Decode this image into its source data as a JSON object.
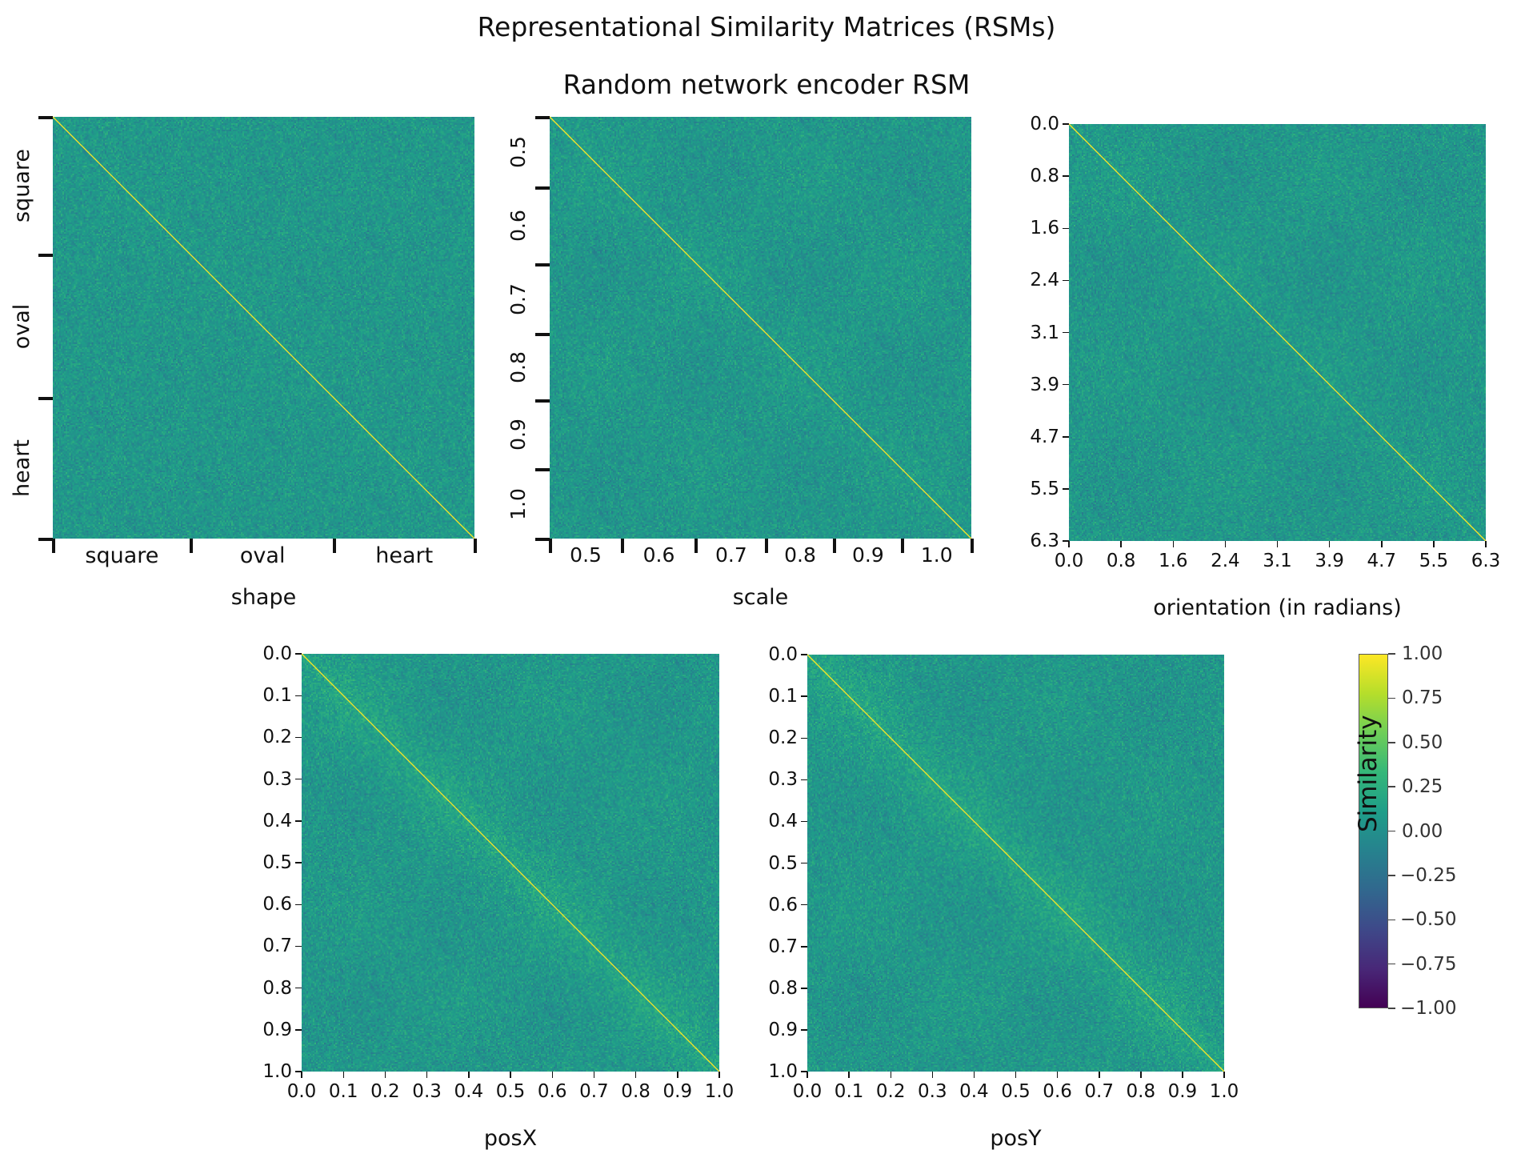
{
  "suptitle": "Representational Similarity Matrices (RSMs)",
  "subtitle": "Random network encoder RSM",
  "colormap": "viridis",
  "colors": {
    "diagonal": "#fde725",
    "background_mean": "#23898e"
  },
  "chart_data": [
    {
      "type": "heatmap",
      "xlabel": "shape",
      "ylabel": "",
      "x_ticklabels": [
        "square",
        "oval",
        "heart"
      ],
      "y_ticklabels": [
        "square",
        "oval",
        "heart"
      ],
      "tick_style": "category-boundaries",
      "diagonal_value": 1.0,
      "off_diagonal_approx": 0.05
    },
    {
      "type": "heatmap",
      "xlabel": "scale",
      "ylabel": "",
      "x_ticklabels": [
        "0.5",
        "0.6",
        "0.7",
        "0.8",
        "0.9",
        "1.0"
      ],
      "y_ticklabels": [
        "0.5",
        "0.6",
        "0.7",
        "0.8",
        "0.9",
        "1.0"
      ],
      "tick_style": "category-boundaries",
      "diagonal_value": 1.0,
      "off_diagonal_approx": 0.05
    },
    {
      "type": "heatmap",
      "xlabel": "orientation (in radians)",
      "ylabel": "",
      "x_ticklabels": [
        "0.0",
        "0.8",
        "1.6",
        "2.4",
        "3.1",
        "3.9",
        "4.7",
        "5.5",
        "6.3"
      ],
      "y_ticklabels": [
        "0.0",
        "0.8",
        "1.6",
        "2.4",
        "3.1",
        "3.9",
        "4.7",
        "5.5",
        "6.3"
      ],
      "xlim": [
        0,
        6.3
      ],
      "ylim": [
        0,
        6.3
      ],
      "diagonal_value": 1.0,
      "off_diagonal_approx": 0.05
    },
    {
      "type": "heatmap",
      "xlabel": "posX",
      "ylabel": "",
      "x_ticklabels": [
        "0.0",
        "0.1",
        "0.2",
        "0.3",
        "0.4",
        "0.5",
        "0.6",
        "0.7",
        "0.8",
        "0.9",
        "1.0"
      ],
      "y_ticklabels": [
        "0.0",
        "0.1",
        "0.2",
        "0.3",
        "0.4",
        "0.5",
        "0.6",
        "0.7",
        "0.8",
        "0.9",
        "1.0"
      ],
      "xlim": [
        0,
        1
      ],
      "ylim": [
        0,
        1
      ],
      "diagonal_value": 1.0,
      "off_diagonal_approx": 0.05
    },
    {
      "type": "heatmap",
      "xlabel": "posY",
      "ylabel": "",
      "x_ticklabels": [
        "0.0",
        "0.1",
        "0.2",
        "0.3",
        "0.4",
        "0.5",
        "0.6",
        "0.7",
        "0.8",
        "0.9",
        "1.0"
      ],
      "y_ticklabels": [
        "0.0",
        "0.1",
        "0.2",
        "0.3",
        "0.4",
        "0.5",
        "0.6",
        "0.7",
        "0.8",
        "0.9",
        "1.0"
      ],
      "xlim": [
        0,
        1
      ],
      "ylim": [
        0,
        1
      ],
      "diagonal_value": 1.0,
      "off_diagonal_approx": 0.05
    }
  ],
  "colorbar": {
    "label": "Similarity",
    "range": [
      -1.0,
      1.0
    ],
    "ticklabels": [
      "1.00",
      "0.75",
      "0.50",
      "0.25",
      "0.00",
      "−0.25",
      "−0.50",
      "−0.75",
      "−1.00"
    ]
  }
}
